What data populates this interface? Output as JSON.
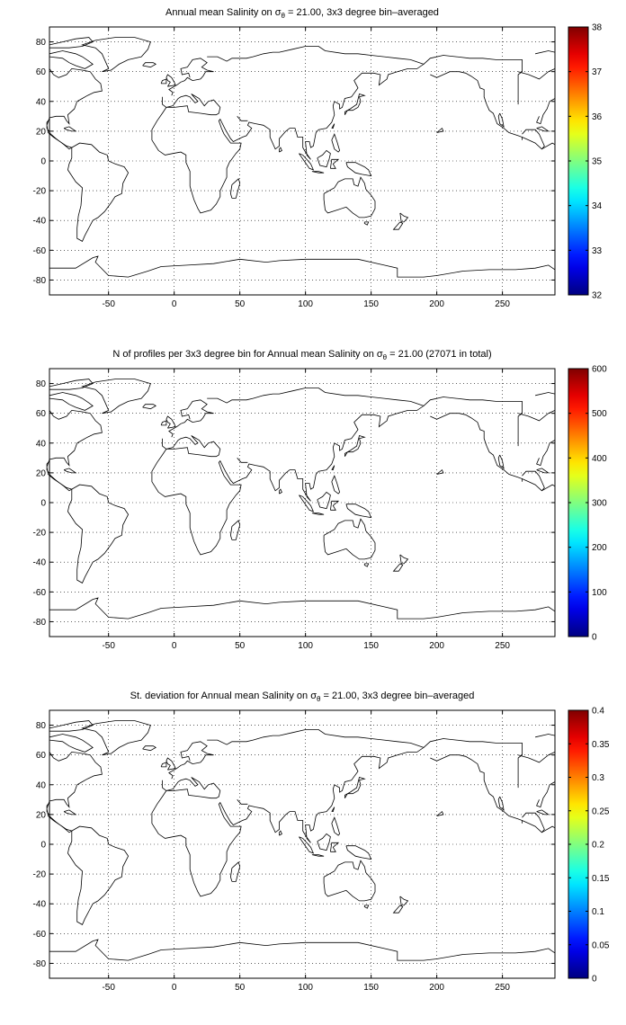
{
  "panels": [
    {
      "title_pre": "Annual mean Salinity on ",
      "title_sym": "σ",
      "title_sub": "θ",
      "title_post": " = 21.00, 3x3 degree bin–averaged",
      "colorbar": {
        "min": 32,
        "max": 38,
        "ticks": [
          "32",
          "33",
          "34",
          "35",
          "36",
          "37",
          "38"
        ]
      }
    },
    {
      "title_pre": "N of profiles per 3x3 degree bin for Annual mean Salinity on ",
      "title_sym": "σ",
      "title_sub": "θ",
      "title_post": " = 21.00 (27071 in total)",
      "colorbar": {
        "min": 0,
        "max": 600,
        "ticks": [
          "0",
          "100",
          "200",
          "300",
          "400",
          "500",
          "600"
        ]
      }
    },
    {
      "title_pre": "St. deviation for Annual mean Salinity on ",
      "title_sym": "σ",
      "title_sub": "θ",
      "title_post": " = 21.00, 3x3 degree bin–averaged",
      "colorbar": {
        "min": 0,
        "max": 0.4,
        "ticks": [
          "0",
          "0.05",
          "0.1",
          "0.15",
          "0.2",
          "0.25",
          "0.3",
          "0.35",
          "0.4"
        ]
      }
    }
  ],
  "map_axes": {
    "xlim": [
      -95,
      290
    ],
    "ylim": [
      -90,
      90
    ],
    "xticks": [
      "-50",
      "0",
      "50",
      "100",
      "150",
      "200",
      "250"
    ],
    "yticks": [
      "-80",
      "-60",
      "-40",
      "-20",
      "0",
      "20",
      "40",
      "60",
      "80"
    ],
    "grid": "dotted",
    "colormap": "jet"
  }
}
